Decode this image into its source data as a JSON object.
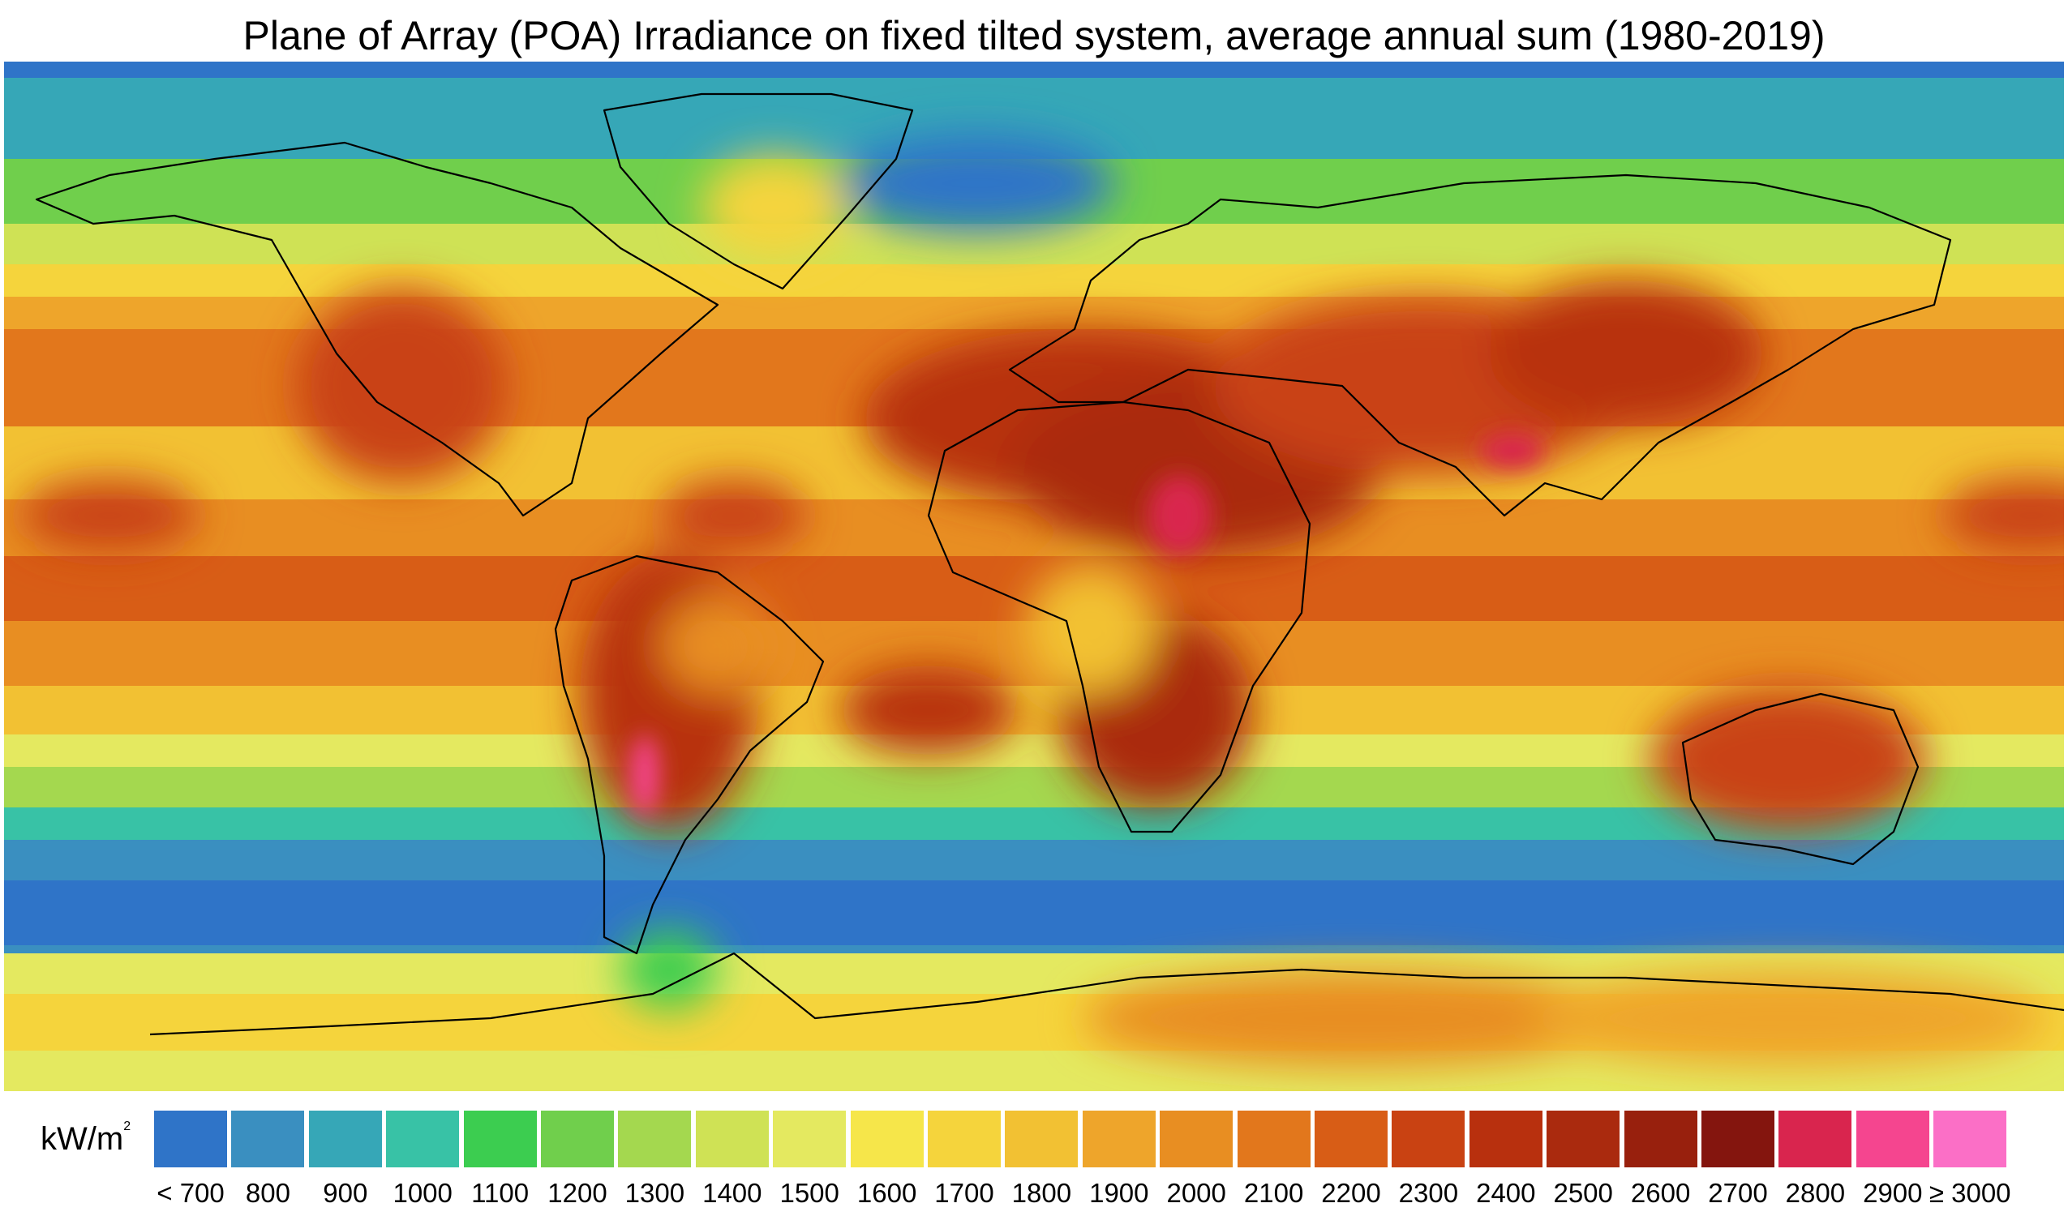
{
  "title": "Plane of Array (POA) Irradiance on fixed tilted system, average annual sum (1980-2019)",
  "legend": {
    "unit_base": "kW/m",
    "unit_sup": "2",
    "classes": [
      {
        "label": "< 700",
        "color": "#2f74c8"
      },
      {
        "label": "800",
        "color": "#3a8fc0"
      },
      {
        "label": "900",
        "color": "#36a7b7"
      },
      {
        "label": "1000",
        "color": "#38c2a6"
      },
      {
        "label": "1100",
        "color": "#3ccd50"
      },
      {
        "label": "1200",
        "color": "#70cf4c"
      },
      {
        "label": "1300",
        "color": "#a4d84f"
      },
      {
        "label": "1400",
        "color": "#cfe255"
      },
      {
        "label": "1500",
        "color": "#e4e960"
      },
      {
        "label": "1600",
        "color": "#f6e64a"
      },
      {
        "label": "1700",
        "color": "#f5d43c"
      },
      {
        "label": "1800",
        "color": "#f2c133"
      },
      {
        "label": "1900",
        "color": "#eea52b"
      },
      {
        "label": "2000",
        "color": "#e88e22"
      },
      {
        "label": "2100",
        "color": "#e2771c"
      },
      {
        "label": "2200",
        "color": "#d85d16"
      },
      {
        "label": "2300",
        "color": "#c94212"
      },
      {
        "label": "2400",
        "color": "#b8300e"
      },
      {
        "label": "2500",
        "color": "#aa2a0e"
      },
      {
        "label": "2600",
        "color": "#98200d"
      },
      {
        "label": "2700",
        "color": "#84150e"
      },
      {
        "label": "2800",
        "color": "#d9254e"
      },
      {
        "label": "2900",
        "color": "#f5458f"
      },
      {
        "label": "≥ 3000",
        "color": "#fb6fc6"
      }
    ]
  }
}
